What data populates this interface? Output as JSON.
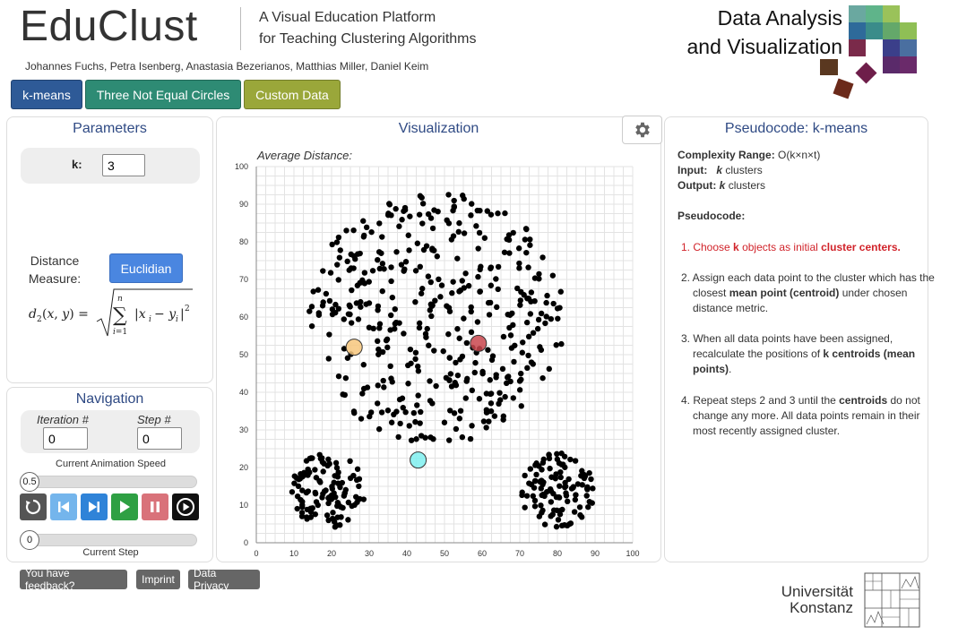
{
  "header": {
    "app_title": "EduClust",
    "subtitle_line1": "A Visual Education Platform",
    "subtitle_line2": "for Teaching Clustering Algorithms",
    "authors": "Johannes Fuchs, Petra Isenberg, Anastasia Bezerianos, Matthias Miller, Daniel Keim",
    "dav_line1": "Data Analysis",
    "dav_line2": "and Visualization"
  },
  "tabs": [
    {
      "label": "k-means",
      "color": "#2e5a97"
    },
    {
      "label": "Three Not Equal Circles",
      "color": "#2e8b74"
    },
    {
      "label": "Custom Data",
      "color": "#9aa73a"
    }
  ],
  "parameters": {
    "title": "Parameters",
    "k_label": "k:",
    "k_value": "3",
    "distance_label_1": "Distance",
    "distance_label_2": "Measure:",
    "distance_button": "Euclidian"
  },
  "navigation": {
    "title": "Navigation",
    "iteration_label": "Iteration #",
    "iteration_value": "0",
    "step_label": "Step #",
    "step_value": "0",
    "speed_label": "Current Animation Speed",
    "speed_value": "0.5",
    "current_step_label": "Current Step",
    "current_step_value": "0"
  },
  "visualization": {
    "title": "Visualization",
    "avg_distance_label": "Average Distance:",
    "gear_icon": "gear-icon"
  },
  "pseudocode": {
    "title": "Pseudocode: k-means",
    "complexity_label": "Complexity Range:",
    "complexity_value": "O(k×n×t)",
    "input_label": "Input:",
    "input_value_k": "k",
    "input_value_rest": "clusters",
    "output_label": "Output:",
    "output_value_k": "k",
    "output_value_rest": "clusters",
    "pseudocode_label": "Pseudocode:",
    "step1_a": "1. Choose ",
    "step1_b": "k",
    "step1_c": " objects as initial ",
    "step1_d": "cluster centers.",
    "step2_a": "2. Assign each data point to the cluster which has the closest ",
    "step2_b": "mean point (centroid)",
    "step2_c": " under chosen distance metric.",
    "step3_a": "3. When all data points have been assigned, recalculate the positions of ",
    "step3_b": "k centroids (mean points)",
    "step3_c": ".",
    "step4_a": "4. Repeat steps 2 and 3 until the ",
    "step4_b": "centroids",
    "step4_c": " do not change any more. All data points remain in their most recently assigned cluster."
  },
  "footer": {
    "feedback": "You have feedback?",
    "imprint": "Imprint",
    "privacy": "Data Privacy",
    "uni_line1": "Universität",
    "uni_line2": "Konstanz"
  },
  "colors": {
    "accent": "#2f4a84",
    "euclidian_button": "#4a86e0",
    "centroid_orange": "#f7c77d",
    "centroid_red": "#c9474e",
    "centroid_cyan": "#7ff0f0"
  },
  "chart_data": {
    "type": "scatter",
    "xlim": [
      0,
      100
    ],
    "ylim": [
      0,
      100
    ],
    "x_ticks": [
      0,
      10,
      20,
      30,
      40,
      50,
      60,
      70,
      80,
      90,
      100
    ],
    "y_ticks": [
      0,
      10,
      20,
      30,
      40,
      50,
      60,
      70,
      80,
      90,
      100
    ],
    "grid": true,
    "clusters": [
      {
        "shape": "large-circle",
        "center": [
          48,
          60
        ],
        "radius": 34,
        "count": 420
      },
      {
        "shape": "small-circle",
        "center": [
          19,
          14
        ],
        "radius": 10,
        "count": 110
      },
      {
        "shape": "small-circle",
        "center": [
          80,
          14
        ],
        "radius": 10,
        "count": 110
      }
    ],
    "centroids": [
      {
        "x": 26,
        "y": 52,
        "color": "#f7c77d"
      },
      {
        "x": 59,
        "y": 53,
        "color": "#c9474e"
      },
      {
        "x": 43,
        "y": 22,
        "color": "#7ff0f0"
      }
    ]
  }
}
